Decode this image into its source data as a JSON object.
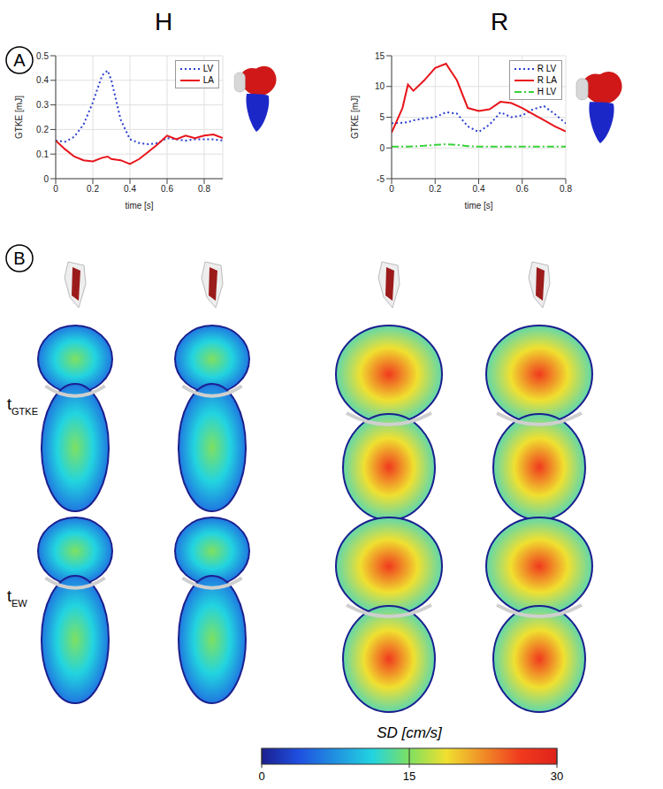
{
  "figure": {
    "columns": [
      "H",
      "R"
    ],
    "panel_labels": [
      "A",
      "B"
    ],
    "row_labels": [
      {
        "text": "t",
        "subscript": "GTKE"
      },
      {
        "text": "t",
        "subscript": "EW"
      }
    ],
    "colorbar": {
      "title": "SD [cm/s]",
      "range": [
        0,
        30
      ],
      "ticks": [
        0,
        15,
        30
      ]
    }
  },
  "chart_data": [
    {
      "type": "line",
      "x_label": "time [s]",
      "y_label": "GTKE [mJ]",
      "xlim": [
        0,
        0.9
      ],
      "xticks": [
        0,
        0.2,
        0.4,
        0.6,
        0.8
      ],
      "ylim": [
        0,
        0.5
      ],
      "yticks": [
        0,
        0.1,
        0.2,
        0.3,
        0.4,
        0.5
      ],
      "grid": true,
      "legend": "upper right",
      "x": [
        0,
        0.05,
        0.1,
        0.15,
        0.2,
        0.25,
        0.28,
        0.3,
        0.35,
        0.4,
        0.45,
        0.5,
        0.55,
        0.6,
        0.65,
        0.7,
        0.75,
        0.8,
        0.85,
        0.9
      ],
      "series": [
        {
          "name": "LV",
          "color": "#2a3fd0",
          "line_style": "dotted",
          "values": [
            0.155,
            0.15,
            0.17,
            0.22,
            0.31,
            0.42,
            0.44,
            0.4,
            0.24,
            0.16,
            0.145,
            0.14,
            0.145,
            0.165,
            0.16,
            0.155,
            0.16,
            0.16,
            0.16,
            0.155
          ]
        },
        {
          "name": "LA",
          "color": "#e8141a",
          "line_style": "solid",
          "values": [
            0.155,
            0.12,
            0.09,
            0.075,
            0.07,
            0.085,
            0.09,
            0.08,
            0.075,
            0.06,
            0.08,
            0.11,
            0.14,
            0.175,
            0.16,
            0.175,
            0.165,
            0.175,
            0.18,
            0.165
          ]
        }
      ]
    },
    {
      "type": "line",
      "x_label": "time [s]",
      "y_label": "GTKE [mJ]",
      "xlim": [
        0,
        0.8
      ],
      "xticks": [
        0,
        0.2,
        0.4,
        0.6,
        0.8
      ],
      "ylim": [
        -5,
        15
      ],
      "yticks": [
        -5,
        0,
        5,
        10,
        15
      ],
      "grid": true,
      "legend": "upper right",
      "x": [
        0,
        0.05,
        0.075,
        0.1,
        0.15,
        0.2,
        0.25,
        0.3,
        0.35,
        0.4,
        0.45,
        0.5,
        0.55,
        0.6,
        0.65,
        0.7,
        0.75,
        0.8
      ],
      "series": [
        {
          "name": "R LV",
          "color": "#2a3fd0",
          "line_style": "dotted",
          "values": [
            4,
            4.1,
            4.2,
            4.5,
            4.8,
            5,
            5.8,
            5.6,
            3.5,
            2.6,
            3.8,
            5.8,
            5,
            5.3,
            6.3,
            6.8,
            5.5,
            4
          ]
        },
        {
          "name": "R LA",
          "color": "#e8141a",
          "line_style": "solid",
          "values": [
            2.5,
            6.5,
            10.3,
            9.3,
            11,
            13,
            13.7,
            11,
            6.5,
            6,
            6.3,
            7.5,
            7.3,
            6.5,
            5.5,
            4.5,
            3.5,
            2.7
          ]
        },
        {
          "name": "H LV",
          "color": "#39d239",
          "line_style": "dashdot",
          "values": [
            0.2,
            0.2,
            0.2,
            0.25,
            0.35,
            0.5,
            0.6,
            0.5,
            0.3,
            0.2,
            0.2,
            0.2,
            0.2,
            0.2,
            0.2,
            0.2,
            0.2,
            0.2
          ]
        }
      ]
    }
  ]
}
